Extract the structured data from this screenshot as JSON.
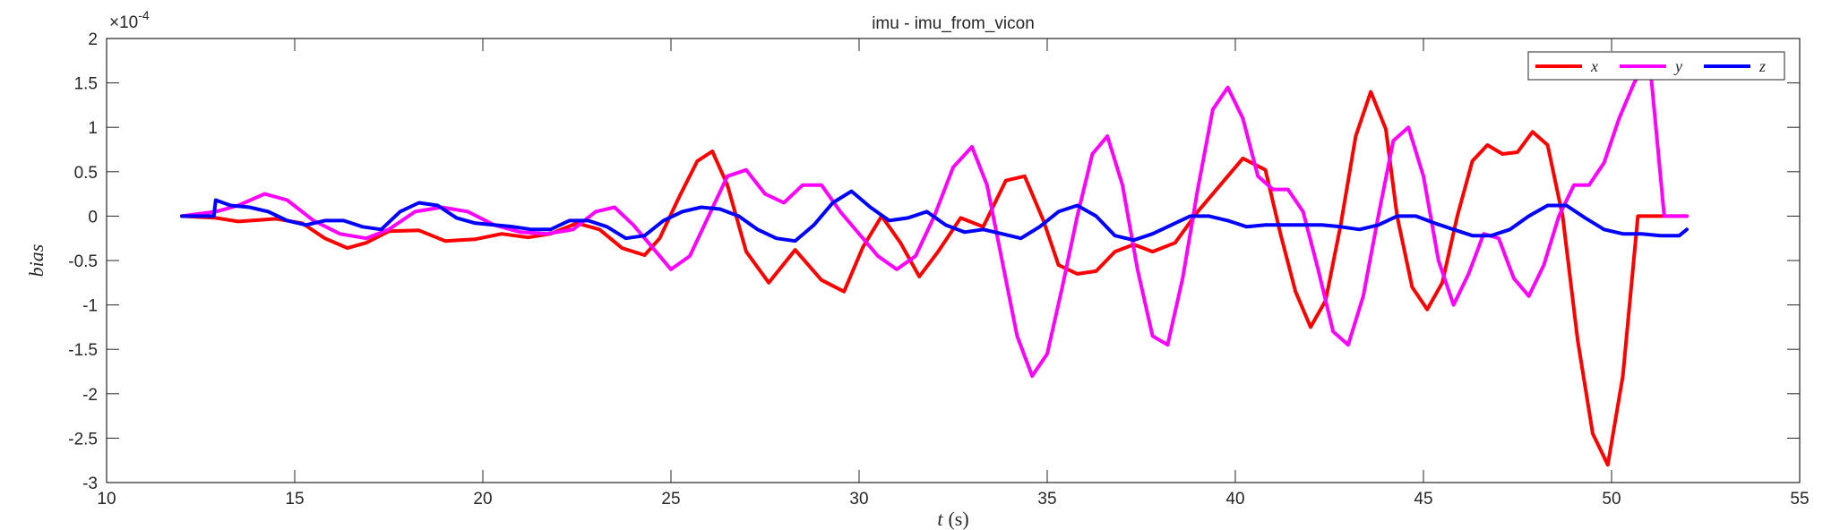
{
  "chart_data": {
    "type": "line",
    "title": "imu - imu_from_vicon",
    "xlabel_var": "t",
    "xlabel_unit": "(s)",
    "ylabel": "bias",
    "exponent_base": "×10",
    "exponent_power": "-4",
    "xlim": [
      10,
      55
    ],
    "ylim": [
      -3,
      2
    ],
    "xticks": [
      10,
      15,
      20,
      25,
      30,
      35,
      40,
      45,
      50,
      55
    ],
    "yticks": [
      -3,
      -2.5,
      -2,
      -1.5,
      -1,
      -0.5,
      0,
      0.5,
      1,
      1.5,
      2
    ],
    "xtick_labels": [
      "10",
      "15",
      "20",
      "25",
      "30",
      "35",
      "40",
      "45",
      "50",
      "55"
    ],
    "ytick_labels": [
      "-3",
      "-2.5",
      "-2",
      "-1.5",
      "-1",
      "-0.5",
      "0",
      "0.5",
      "1",
      "1.5",
      "2"
    ],
    "grid": false,
    "legend_position": "top-right",
    "series": [
      {
        "name": "x",
        "color": "#ff0000",
        "x": [
          12.0,
          12.9,
          13.5,
          14.5,
          15.2,
          15.8,
          16.4,
          16.9,
          17.5,
          18.3,
          19.0,
          19.8,
          20.5,
          21.2,
          21.8,
          22.5,
          23.1,
          23.7,
          24.3,
          24.7,
          25.2,
          25.7,
          26.1,
          26.5,
          27.0,
          27.6,
          28.3,
          29.0,
          29.6,
          30.1,
          30.6,
          31.1,
          31.6,
          32.1,
          32.7,
          33.3,
          33.9,
          34.4,
          34.9,
          35.3,
          35.8,
          36.3,
          36.8,
          37.3,
          37.8,
          38.4,
          39.0,
          39.6,
          40.2,
          40.8,
          41.2,
          41.6,
          42.0,
          42.4,
          42.8,
          43.2,
          43.6,
          44.0,
          44.3,
          44.7,
          45.1,
          45.5,
          45.9,
          46.3,
          46.7,
          47.1,
          47.5,
          47.9,
          48.3,
          48.7,
          49.1,
          49.5,
          49.9,
          50.3,
          50.7,
          51.1,
          51.4,
          51.7,
          52.0
        ],
        "values": [
          0.0,
          -0.02,
          -0.06,
          -0.03,
          -0.08,
          -0.25,
          -0.36,
          -0.3,
          -0.17,
          -0.16,
          -0.28,
          -0.26,
          -0.2,
          -0.24,
          -0.2,
          -0.08,
          -0.15,
          -0.36,
          -0.44,
          -0.25,
          0.2,
          0.62,
          0.73,
          0.35,
          -0.4,
          -0.75,
          -0.38,
          -0.72,
          -0.85,
          -0.35,
          0.0,
          -0.3,
          -0.68,
          -0.4,
          -0.02,
          -0.12,
          0.4,
          0.45,
          -0.05,
          -0.55,
          -0.65,
          -0.62,
          -0.4,
          -0.32,
          -0.4,
          -0.3,
          0.05,
          0.35,
          0.65,
          0.52,
          -0.2,
          -0.85,
          -1.25,
          -0.95,
          -0.1,
          0.9,
          1.4,
          0.98,
          0.0,
          -0.8,
          -1.05,
          -0.75,
          0.0,
          0.62,
          0.8,
          0.7,
          0.72,
          0.95,
          0.8,
          0.0,
          -1.4,
          -2.45,
          -2.8,
          -1.8,
          0.0,
          0.0,
          0.0,
          0.0,
          0.0
        ]
      },
      {
        "name": "y",
        "color": "#ff00ff",
        "x": [
          12.0,
          12.9,
          13.5,
          14.2,
          14.8,
          15.5,
          16.2,
          16.9,
          17.5,
          18.2,
          18.9,
          19.6,
          20.3,
          21.0,
          21.7,
          22.4,
          23.0,
          23.5,
          24.0,
          24.5,
          25.0,
          25.5,
          26.0,
          26.5,
          27.0,
          27.5,
          28.0,
          28.5,
          29.0,
          29.5,
          30.0,
          30.5,
          31.0,
          31.5,
          32.0,
          32.5,
          33.0,
          33.4,
          33.8,
          34.2,
          34.6,
          35.0,
          35.4,
          35.8,
          36.2,
          36.6,
          37.0,
          37.4,
          37.8,
          38.2,
          38.6,
          39.0,
          39.4,
          39.8,
          40.2,
          40.6,
          41.0,
          41.4,
          41.8,
          42.2,
          42.6,
          43.0,
          43.4,
          43.8,
          44.2,
          44.6,
          45.0,
          45.4,
          45.8,
          46.2,
          46.6,
          47.0,
          47.4,
          47.8,
          48.2,
          48.6,
          49.0,
          49.4,
          49.8,
          50.2,
          50.6,
          51.0,
          51.4,
          51.8,
          52.0
        ],
        "values": [
          0.0,
          0.05,
          0.12,
          0.25,
          0.18,
          -0.05,
          -0.2,
          -0.25,
          -0.15,
          0.05,
          0.1,
          0.05,
          -0.1,
          -0.18,
          -0.2,
          -0.15,
          0.05,
          0.1,
          -0.1,
          -0.35,
          -0.6,
          -0.45,
          0.0,
          0.45,
          0.52,
          0.25,
          0.15,
          0.35,
          0.35,
          0.05,
          -0.2,
          -0.45,
          -0.6,
          -0.45,
          0.0,
          0.55,
          0.78,
          0.35,
          -0.5,
          -1.35,
          -1.8,
          -1.55,
          -0.8,
          0.0,
          0.7,
          0.9,
          0.35,
          -0.6,
          -1.35,
          -1.45,
          -0.7,
          0.3,
          1.2,
          1.45,
          1.1,
          0.45,
          0.3,
          0.3,
          0.05,
          -0.6,
          -1.3,
          -1.45,
          -0.9,
          0.0,
          0.85,
          1.0,
          0.45,
          -0.5,
          -1.0,
          -0.65,
          -0.2,
          -0.25,
          -0.7,
          -0.9,
          -0.55,
          0.0,
          0.35,
          0.35,
          0.6,
          1.1,
          1.5,
          1.8,
          0.0,
          0.0,
          0.0
        ]
      },
      {
        "name": "z",
        "color": "#0000ff",
        "x": [
          12.0,
          12.85,
          12.9,
          13.3,
          13.8,
          14.3,
          14.8,
          15.3,
          15.8,
          16.3,
          16.8,
          17.3,
          17.8,
          18.3,
          18.8,
          19.3,
          19.8,
          20.3,
          20.8,
          21.3,
          21.8,
          22.3,
          22.8,
          23.3,
          23.8,
          24.3,
          24.8,
          25.3,
          25.8,
          26.3,
          26.8,
          27.3,
          27.8,
          28.3,
          28.8,
          29.3,
          29.8,
          30.3,
          30.8,
          31.3,
          31.8,
          32.3,
          32.8,
          33.3,
          33.8,
          34.3,
          34.8,
          35.3,
          35.8,
          36.3,
          36.8,
          37.3,
          37.8,
          38.3,
          38.8,
          39.3,
          39.8,
          40.3,
          40.8,
          41.3,
          41.8,
          42.3,
          42.8,
          43.3,
          43.8,
          44.3,
          44.8,
          45.3,
          45.8,
          46.3,
          46.8,
          47.3,
          47.8,
          48.3,
          48.8,
          49.3,
          49.8,
          50.3,
          50.8,
          51.3,
          51.8,
          52.0
        ],
        "values": [
          0.0,
          0.0,
          0.18,
          0.12,
          0.1,
          0.05,
          -0.05,
          -0.1,
          -0.05,
          -0.05,
          -0.12,
          -0.15,
          0.05,
          0.15,
          0.12,
          -0.02,
          -0.08,
          -0.1,
          -0.12,
          -0.15,
          -0.15,
          -0.05,
          -0.05,
          -0.12,
          -0.25,
          -0.22,
          -0.05,
          0.05,
          0.1,
          0.08,
          0.0,
          -0.15,
          -0.25,
          -0.28,
          -0.1,
          0.15,
          0.28,
          0.1,
          -0.05,
          -0.02,
          0.05,
          -0.1,
          -0.18,
          -0.15,
          -0.2,
          -0.25,
          -0.12,
          0.05,
          0.12,
          0.0,
          -0.22,
          -0.27,
          -0.2,
          -0.1,
          0.0,
          0.0,
          -0.05,
          -0.12,
          -0.1,
          -0.1,
          -0.1,
          -0.1,
          -0.12,
          -0.15,
          -0.1,
          0.0,
          0.0,
          -0.08,
          -0.15,
          -0.22,
          -0.22,
          -0.15,
          0.0,
          0.12,
          0.12,
          -0.02,
          -0.15,
          -0.2,
          -0.2,
          -0.22,
          -0.22,
          -0.15
        ]
      }
    ]
  }
}
